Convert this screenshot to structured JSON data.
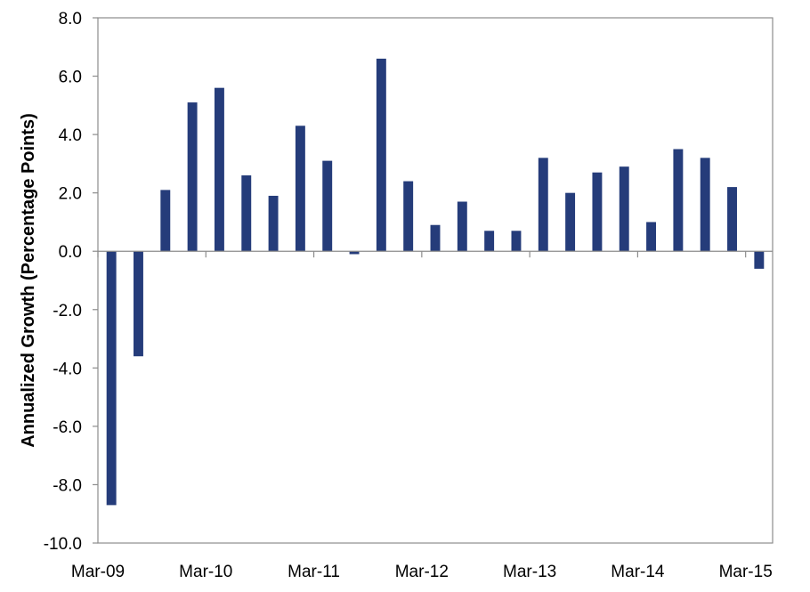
{
  "chart_data": {
    "type": "bar",
    "title": "",
    "xlabel": "",
    "ylabel": "Annualized Growth (Percentage Points)",
    "ylim": [
      -10.0,
      8.0
    ],
    "yticks": [
      8.0,
      6.0,
      4.0,
      2.0,
      0.0,
      -2.0,
      -4.0,
      -6.0,
      -8.0,
      -10.0
    ],
    "ytick_labels": [
      "8.0",
      "6.0",
      "4.0",
      "2.0",
      "0.0",
      "-2.0",
      "-4.0",
      "-6.0",
      "-8.0",
      "-10.0"
    ],
    "xtick_labels": [
      "Mar-09",
      "Mar-10",
      "Mar-11",
      "Mar-12",
      "Mar-13",
      "Mar-14",
      "Mar-15"
    ],
    "grid": false,
    "legend": "none",
    "bar_color": "#253C7A",
    "categories": [
      "Mar-09",
      "Jun-09",
      "Sep-09",
      "Dec-09",
      "Mar-10",
      "Jun-10",
      "Sep-10",
      "Dec-10",
      "Mar-11",
      "Jun-11",
      "Sep-11",
      "Dec-11",
      "Mar-12",
      "Jun-12",
      "Sep-12",
      "Dec-12",
      "Mar-13",
      "Jun-13",
      "Sep-13",
      "Dec-13",
      "Mar-14",
      "Jun-14",
      "Sep-14",
      "Dec-14",
      "Mar-15"
    ],
    "values": [
      -8.7,
      -3.6,
      2.1,
      5.1,
      5.6,
      2.6,
      1.9,
      4.3,
      3.1,
      -0.1,
      6.6,
      2.4,
      0.9,
      1.7,
      0.7,
      0.7,
      3.2,
      2.0,
      2.7,
      2.9,
      1.0,
      3.5,
      3.2,
      2.2,
      -0.6
    ]
  }
}
